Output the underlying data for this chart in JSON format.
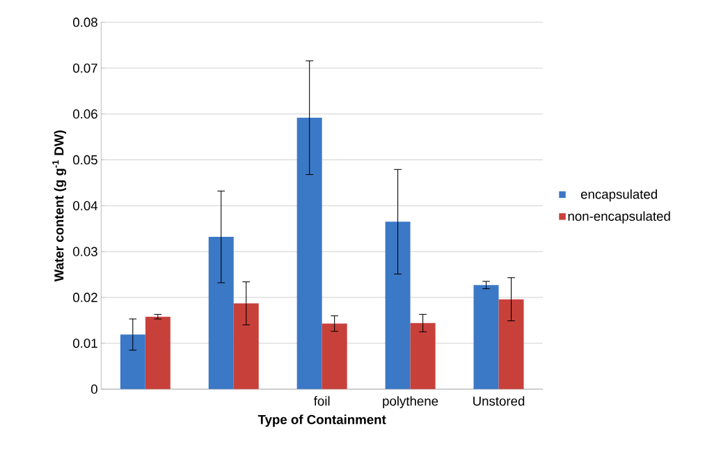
{
  "chart_data": {
    "type": "bar",
    "xlabel": "Type of Containment",
    "ylabel": "Water content (g g$^{-1}$ DW)",
    "categories": [
      null,
      null,
      "foil",
      "polythene",
      "Unstored"
    ],
    "series": [
      {
        "name": "encapsulated",
        "color": "#3b78c6",
        "values": [
          0.0119,
          0.0332,
          0.0592,
          0.0365,
          0.0227
        ],
        "errors": [
          0.0034,
          0.01,
          0.0124,
          0.0114,
          0.0008
        ]
      },
      {
        "name": "non-encapsulated",
        "color": "#c8403a",
        "values": [
          0.0158,
          0.0187,
          0.0143,
          0.0144,
          0.0196
        ],
        "errors": [
          0.0005,
          0.0047,
          0.0017,
          0.0019,
          0.0047
        ]
      }
    ],
    "ylim": [
      0,
      0.08
    ],
    "yticks": [
      0,
      0.01,
      0.02,
      0.03,
      0.04,
      0.05,
      0.06,
      0.07,
      0.08
    ],
    "grid": "y",
    "legend": "right"
  }
}
